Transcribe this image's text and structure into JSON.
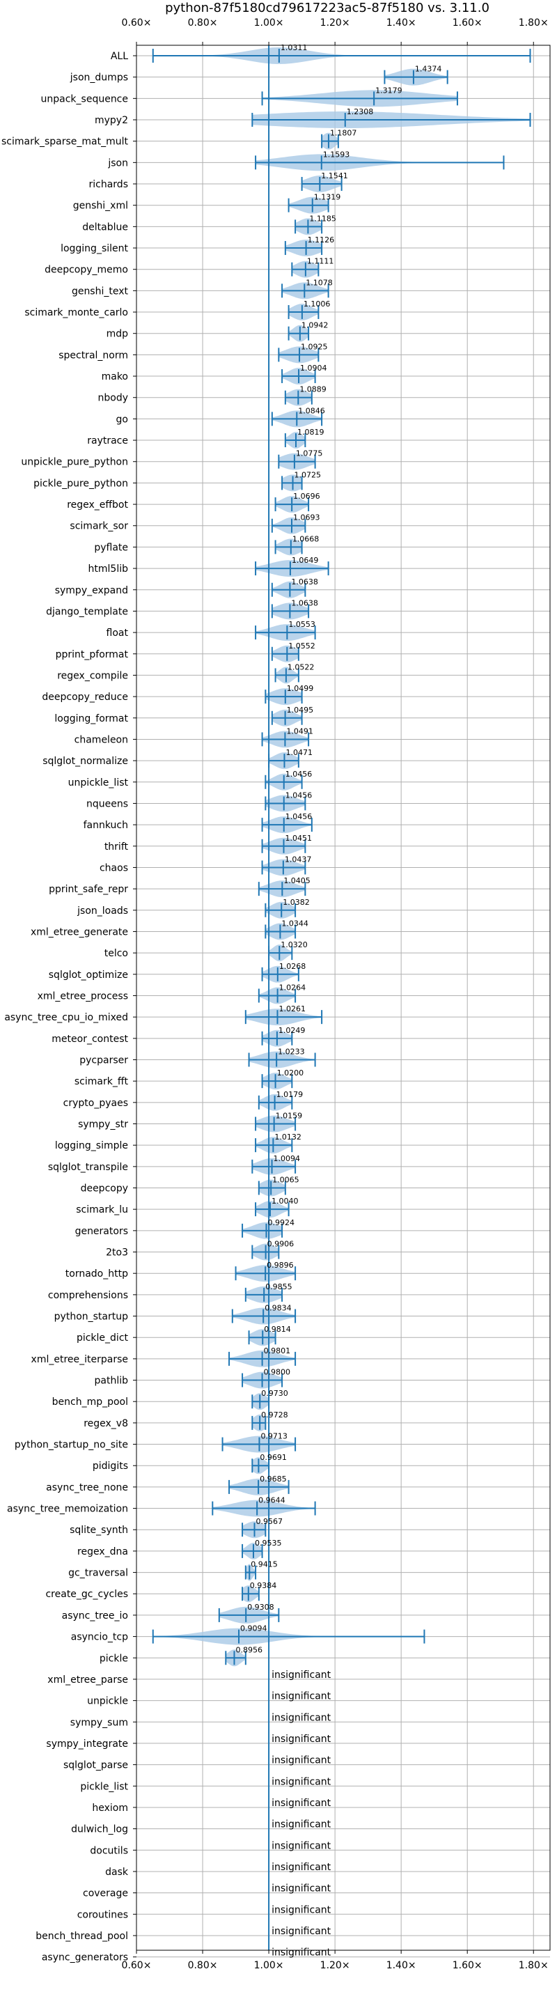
{
  "colors": {
    "accent": "#1f77b4",
    "violin": "#a9c9e6",
    "grid": "#b0b0b0"
  },
  "chart_data": {
    "type": "violin",
    "title": "python-87f5180cd79617223ac5-87f5180 vs. 3.11.0",
    "xlabel": "",
    "ylabel": "",
    "xlim": [
      0.6,
      1.85
    ],
    "xticks": [
      0.6,
      0.8,
      1.0,
      1.2,
      1.4,
      1.6,
      1.8
    ],
    "xtick_labels": [
      "0.60×",
      "0.80×",
      "1.00×",
      "1.20×",
      "1.40×",
      "1.60×",
      "1.80×"
    ],
    "reference_line": 1.0,
    "grid": true,
    "insignificant_label": "insignificant",
    "benchmarks": [
      {
        "name": "ALL",
        "value": 1.0311,
        "label": "1.0311",
        "min": 0.65,
        "max": 1.79,
        "spread": 0.09
      },
      {
        "name": "json_dumps",
        "value": 1.4374,
        "label": "1.4374",
        "min": 1.35,
        "max": 1.54,
        "spread": 0.05
      },
      {
        "name": "unpack_sequence",
        "value": 1.3179,
        "label": "1.3179",
        "min": 0.98,
        "max": 1.57,
        "spread": 0.16
      },
      {
        "name": "mypy2",
        "value": 1.2308,
        "label": "1.2308",
        "min": 0.95,
        "max": 1.79,
        "spread": 0.28
      },
      {
        "name": "scimark_sparse_mat_mult",
        "value": 1.1807,
        "label": "1.1807",
        "min": 1.16,
        "max": 1.21,
        "spread": 0.02
      },
      {
        "name": "json",
        "value": 1.1593,
        "label": "1.1593",
        "min": 0.96,
        "max": 1.71,
        "spread": 0.12
      },
      {
        "name": "richards",
        "value": 1.1541,
        "label": "1.1541",
        "min": 1.1,
        "max": 1.22,
        "spread": 0.04
      },
      {
        "name": "genshi_xml",
        "value": 1.1319,
        "label": "1.1319",
        "min": 1.06,
        "max": 1.18,
        "spread": 0.04
      },
      {
        "name": "deltablue",
        "value": 1.1185,
        "label": "1.1185",
        "min": 1.08,
        "max": 1.16,
        "spread": 0.03
      },
      {
        "name": "logging_silent",
        "value": 1.1126,
        "label": "1.1126",
        "min": 1.05,
        "max": 1.16,
        "spread": 0.04
      },
      {
        "name": "deepcopy_memo",
        "value": 1.1111,
        "label": "1.1111",
        "min": 1.07,
        "max": 1.15,
        "spread": 0.03
      },
      {
        "name": "genshi_text",
        "value": 1.1078,
        "label": "1.1078",
        "min": 1.04,
        "max": 1.18,
        "spread": 0.04
      },
      {
        "name": "scimark_monte_carlo",
        "value": 1.1006,
        "label": "1.1006",
        "min": 1.06,
        "max": 1.15,
        "spread": 0.03
      },
      {
        "name": "mdp",
        "value": 1.0942,
        "label": "1.0942",
        "min": 1.06,
        "max": 1.12,
        "spread": 0.02
      },
      {
        "name": "spectral_norm",
        "value": 1.0925,
        "label": "1.0925",
        "min": 1.03,
        "max": 1.15,
        "spread": 0.04
      },
      {
        "name": "mako",
        "value": 1.0904,
        "label": "1.0904",
        "min": 1.04,
        "max": 1.14,
        "spread": 0.03
      },
      {
        "name": "nbody",
        "value": 1.0889,
        "label": "1.0889",
        "min": 1.05,
        "max": 1.13,
        "spread": 0.03
      },
      {
        "name": "go",
        "value": 1.0846,
        "label": "1.0846",
        "min": 1.01,
        "max": 1.16,
        "spread": 0.04
      },
      {
        "name": "raytrace",
        "value": 1.0819,
        "label": "1.0819",
        "min": 1.05,
        "max": 1.11,
        "spread": 0.02
      },
      {
        "name": "unpickle_pure_python",
        "value": 1.0775,
        "label": "1.0775",
        "min": 1.03,
        "max": 1.14,
        "spread": 0.04
      },
      {
        "name": "pickle_pure_python",
        "value": 1.0725,
        "label": "1.0725",
        "min": 1.04,
        "max": 1.1,
        "spread": 0.03
      },
      {
        "name": "regex_effbot",
        "value": 1.0696,
        "label": "1.0696",
        "min": 1.02,
        "max": 1.12,
        "spread": 0.03
      },
      {
        "name": "scimark_sor",
        "value": 1.0693,
        "label": "1.0693",
        "min": 1.01,
        "max": 1.11,
        "spread": 0.03
      },
      {
        "name": "pyflate",
        "value": 1.0668,
        "label": "1.0668",
        "min": 1.02,
        "max": 1.1,
        "spread": 0.03
      },
      {
        "name": "html5lib",
        "value": 1.0649,
        "label": "1.0649",
        "min": 0.96,
        "max": 1.18,
        "spread": 0.06
      },
      {
        "name": "sympy_expand",
        "value": 1.0638,
        "label": "1.0638",
        "min": 1.01,
        "max": 1.11,
        "spread": 0.03
      },
      {
        "name": "django_template",
        "value": 1.0638,
        "label": "1.0638",
        "min": 1.01,
        "max": 1.12,
        "spread": 0.04
      },
      {
        "name": "float",
        "value": 1.0553,
        "label": "1.0553",
        "min": 0.96,
        "max": 1.14,
        "spread": 0.05
      },
      {
        "name": "pprint_pformat",
        "value": 1.0552,
        "label": "1.0552",
        "min": 1.01,
        "max": 1.09,
        "spread": 0.03
      },
      {
        "name": "regex_compile",
        "value": 1.0522,
        "label": "1.0522",
        "min": 1.02,
        "max": 1.09,
        "spread": 0.02
      },
      {
        "name": "deepcopy_reduce",
        "value": 1.0499,
        "label": "1.0499",
        "min": 0.99,
        "max": 1.1,
        "spread": 0.04
      },
      {
        "name": "logging_format",
        "value": 1.0495,
        "label": "1.0495",
        "min": 1.01,
        "max": 1.1,
        "spread": 0.03
      },
      {
        "name": "chameleon",
        "value": 1.0491,
        "label": "1.0491",
        "min": 0.98,
        "max": 1.12,
        "spread": 0.04
      },
      {
        "name": "sqlglot_normalize",
        "value": 1.0471,
        "label": "1.0471",
        "min": 1.0,
        "max": 1.09,
        "spread": 0.03
      },
      {
        "name": "unpickle_list",
        "value": 1.0456,
        "label": "1.0456",
        "min": 0.99,
        "max": 1.1,
        "spread": 0.03
      },
      {
        "name": "nqueens",
        "value": 1.0456,
        "label": "1.0456",
        "min": 0.99,
        "max": 1.11,
        "spread": 0.04
      },
      {
        "name": "fannkuch",
        "value": 1.0456,
        "label": "1.0456",
        "min": 0.98,
        "max": 1.13,
        "spread": 0.04
      },
      {
        "name": "thrift",
        "value": 1.0451,
        "label": "1.0451",
        "min": 0.98,
        "max": 1.11,
        "spread": 0.04
      },
      {
        "name": "chaos",
        "value": 1.0437,
        "label": "1.0437",
        "min": 0.98,
        "max": 1.11,
        "spread": 0.04
      },
      {
        "name": "pprint_safe_repr",
        "value": 1.0405,
        "label": "1.0405",
        "min": 0.97,
        "max": 1.11,
        "spread": 0.04
      },
      {
        "name": "json_loads",
        "value": 1.0382,
        "label": "1.0382",
        "min": 0.99,
        "max": 1.08,
        "spread": 0.03
      },
      {
        "name": "xml_etree_generate",
        "value": 1.0344,
        "label": "1.0344",
        "min": 0.99,
        "max": 1.08,
        "spread": 0.03
      },
      {
        "name": "telco",
        "value": 1.032,
        "label": "1.0320",
        "min": 1.0,
        "max": 1.07,
        "spread": 0.02
      },
      {
        "name": "sqlglot_optimize",
        "value": 1.0268,
        "label": "1.0268",
        "min": 0.98,
        "max": 1.09,
        "spread": 0.03
      },
      {
        "name": "xml_etree_process",
        "value": 1.0264,
        "label": "1.0264",
        "min": 0.97,
        "max": 1.08,
        "spread": 0.03
      },
      {
        "name": "async_tree_cpu_io_mixed",
        "value": 1.0261,
        "label": "1.0261",
        "min": 0.93,
        "max": 1.16,
        "spread": 0.06
      },
      {
        "name": "meteor_contest",
        "value": 1.0249,
        "label": "1.0249",
        "min": 0.98,
        "max": 1.07,
        "spread": 0.03
      },
      {
        "name": "pycparser",
        "value": 1.0233,
        "label": "1.0233",
        "min": 0.94,
        "max": 1.14,
        "spread": 0.05
      },
      {
        "name": "scimark_fft",
        "value": 1.02,
        "label": "1.0200",
        "min": 0.98,
        "max": 1.07,
        "spread": 0.03
      },
      {
        "name": "crypto_pyaes",
        "value": 1.0179,
        "label": "1.0179",
        "min": 0.97,
        "max": 1.07,
        "spread": 0.03
      },
      {
        "name": "sympy_str",
        "value": 1.0159,
        "label": "1.0159",
        "min": 0.96,
        "max": 1.08,
        "spread": 0.04
      },
      {
        "name": "logging_simple",
        "value": 1.0132,
        "label": "1.0132",
        "min": 0.96,
        "max": 1.07,
        "spread": 0.03
      },
      {
        "name": "sqlglot_transpile",
        "value": 1.0094,
        "label": "1.0094",
        "min": 0.95,
        "max": 1.08,
        "spread": 0.04
      },
      {
        "name": "deepcopy",
        "value": 1.0065,
        "label": "1.0065",
        "min": 0.97,
        "max": 1.05,
        "spread": 0.03
      },
      {
        "name": "scimark_lu",
        "value": 1.004,
        "label": "1.0040",
        "min": 0.96,
        "max": 1.06,
        "spread": 0.03
      },
      {
        "name": "generators",
        "value": 0.9924,
        "label": "0.9924",
        "min": 0.92,
        "max": 1.04,
        "spread": 0.04
      },
      {
        "name": "2to3",
        "value": 0.9906,
        "label": "0.9906",
        "min": 0.95,
        "max": 1.03,
        "spread": 0.03
      },
      {
        "name": "tornado_http",
        "value": 0.9896,
        "label": "0.9896",
        "min": 0.9,
        "max": 1.08,
        "spread": 0.05
      },
      {
        "name": "comprehensions",
        "value": 0.9855,
        "label": "0.9855",
        "min": 0.93,
        "max": 1.04,
        "spread": 0.04
      },
      {
        "name": "python_startup",
        "value": 0.9834,
        "label": "0.9834",
        "min": 0.89,
        "max": 1.08,
        "spread": 0.05
      },
      {
        "name": "pickle_dict",
        "value": 0.9814,
        "label": "0.9814",
        "min": 0.94,
        "max": 1.02,
        "spread": 0.03
      },
      {
        "name": "xml_etree_iterparse",
        "value": 0.9801,
        "label": "0.9801",
        "min": 0.88,
        "max": 1.08,
        "spread": 0.05
      },
      {
        "name": "pathlib",
        "value": 0.98,
        "label": "0.9800",
        "min": 0.92,
        "max": 1.04,
        "spread": 0.04
      },
      {
        "name": "bench_mp_pool",
        "value": 0.973,
        "label": "0.9730",
        "min": 0.95,
        "max": 1.0,
        "spread": 0.02
      },
      {
        "name": "regex_v8",
        "value": 0.9728,
        "label": "0.9728",
        "min": 0.95,
        "max": 0.99,
        "spread": 0.02
      },
      {
        "name": "python_startup_no_site",
        "value": 0.9713,
        "label": "0.9713",
        "min": 0.86,
        "max": 1.08,
        "spread": 0.06
      },
      {
        "name": "pidigits",
        "value": 0.9691,
        "label": "0.9691",
        "min": 0.95,
        "max": 1.0,
        "spread": 0.02
      },
      {
        "name": "async_tree_none",
        "value": 0.9685,
        "label": "0.9685",
        "min": 0.88,
        "max": 1.06,
        "spread": 0.05
      },
      {
        "name": "async_tree_memoization",
        "value": 0.9644,
        "label": "0.9644",
        "min": 0.83,
        "max": 1.14,
        "spread": 0.07
      },
      {
        "name": "sqlite_synth",
        "value": 0.9567,
        "label": "0.9567",
        "min": 0.92,
        "max": 0.99,
        "spread": 0.03
      },
      {
        "name": "regex_dna",
        "value": 0.9535,
        "label": "0.9535",
        "min": 0.92,
        "max": 0.98,
        "spread": 0.02
      },
      {
        "name": "gc_traversal",
        "value": 0.9415,
        "label": "0.9415",
        "min": 0.93,
        "max": 0.96,
        "spread": 0.01
      },
      {
        "name": "create_gc_cycles",
        "value": 0.9384,
        "label": "0.9384",
        "min": 0.92,
        "max": 0.97,
        "spread": 0.02
      },
      {
        "name": "async_tree_io",
        "value": 0.9308,
        "label": "0.9308",
        "min": 0.85,
        "max": 1.03,
        "spread": 0.05
      },
      {
        "name": "asyncio_tcp",
        "value": 0.9094,
        "label": "0.9094",
        "min": 0.65,
        "max": 1.47,
        "spread": 0.1
      },
      {
        "name": "pickle",
        "value": 0.8956,
        "label": "0.8956",
        "min": 0.87,
        "max": 0.93,
        "spread": 0.02
      },
      {
        "name": "xml_etree_parse",
        "value": null,
        "label": "insignificant"
      },
      {
        "name": "unpickle",
        "value": null,
        "label": "insignificant"
      },
      {
        "name": "sympy_sum",
        "value": null,
        "label": "insignificant"
      },
      {
        "name": "sympy_integrate",
        "value": null,
        "label": "insignificant"
      },
      {
        "name": "sqlglot_parse",
        "value": null,
        "label": "insignificant"
      },
      {
        "name": "pickle_list",
        "value": null,
        "label": "insignificant"
      },
      {
        "name": "hexiom",
        "value": null,
        "label": "insignificant"
      },
      {
        "name": "dulwich_log",
        "value": null,
        "label": "insignificant"
      },
      {
        "name": "docutils",
        "value": null,
        "label": "insignificant"
      },
      {
        "name": "dask",
        "value": null,
        "label": "insignificant"
      },
      {
        "name": "coverage",
        "value": null,
        "label": "insignificant"
      },
      {
        "name": "coroutines",
        "value": null,
        "label": "insignificant"
      },
      {
        "name": "bench_thread_pool",
        "value": null,
        "label": "insignificant"
      },
      {
        "name": "async_generators",
        "value": null,
        "label": "insignificant"
      }
    ]
  }
}
